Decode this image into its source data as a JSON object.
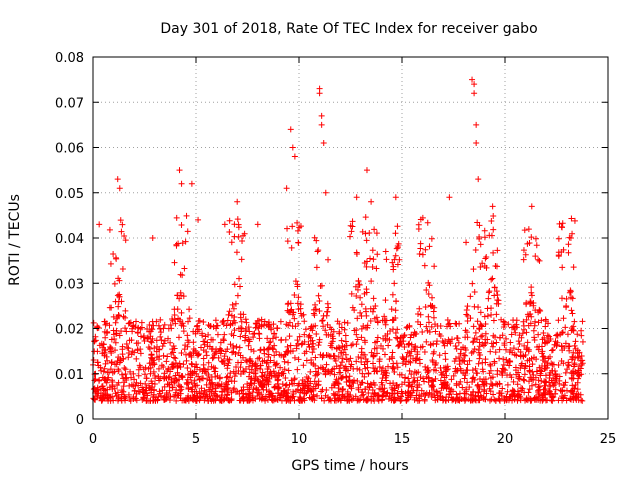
{
  "chart_data": {
    "type": "scatter",
    "title": "Day 301 of 2018, Rate Of TEC Index for receiver gabo",
    "xlabel": "GPS time / hours",
    "ylabel": "ROTI / TECUs",
    "xlim": [
      0,
      25
    ],
    "ylim": [
      0,
      0.08
    ],
    "xticks": [
      "0",
      "5",
      "10",
      "15",
      "20",
      "25"
    ],
    "yticks": [
      "0",
      "0.01",
      "0.02",
      "0.03",
      "0.04",
      "0.05",
      "0.06",
      "0.07",
      "0.08"
    ],
    "grid": true,
    "marker": "+",
    "marker_color": "#ff0000",
    "series": [
      {
        "notable_points": [
          {
            "x": 0.3,
            "y": 0.043
          },
          {
            "x": 1.2,
            "y": 0.053
          },
          {
            "x": 1.3,
            "y": 0.051
          },
          {
            "x": 2.9,
            "y": 0.04
          },
          {
            "x": 4.2,
            "y": 0.055
          },
          {
            "x": 4.3,
            "y": 0.052
          },
          {
            "x": 4.8,
            "y": 0.052
          },
          {
            "x": 5.1,
            "y": 0.044
          },
          {
            "x": 6.4,
            "y": 0.043
          },
          {
            "x": 7.0,
            "y": 0.048
          },
          {
            "x": 8.0,
            "y": 0.043
          },
          {
            "x": 9.4,
            "y": 0.051
          },
          {
            "x": 9.6,
            "y": 0.064
          },
          {
            "x": 9.7,
            "y": 0.06
          },
          {
            "x": 9.8,
            "y": 0.058
          },
          {
            "x": 11.0,
            "y": 0.073
          },
          {
            "x": 11.0,
            "y": 0.072
          },
          {
            "x": 11.1,
            "y": 0.067
          },
          {
            "x": 11.1,
            "y": 0.065
          },
          {
            "x": 11.2,
            "y": 0.061
          },
          {
            "x": 11.3,
            "y": 0.05
          },
          {
            "x": 12.8,
            "y": 0.049
          },
          {
            "x": 13.3,
            "y": 0.055
          },
          {
            "x": 13.5,
            "y": 0.048
          },
          {
            "x": 14.7,
            "y": 0.049
          },
          {
            "x": 17.3,
            "y": 0.049
          },
          {
            "x": 18.4,
            "y": 0.075
          },
          {
            "x": 18.5,
            "y": 0.074
          },
          {
            "x": 18.5,
            "y": 0.072
          },
          {
            "x": 18.6,
            "y": 0.065
          },
          {
            "x": 18.6,
            "y": 0.061
          },
          {
            "x": 18.7,
            "y": 0.053
          },
          {
            "x": 19.4,
            "y": 0.047
          },
          {
            "x": 21.3,
            "y": 0.047
          },
          {
            "x": 23.2,
            "y": 0.04
          }
        ]
      }
    ],
    "bulk_band": {
      "typical_low": 0.004,
      "typical_high": 0.022,
      "burst_high": 0.033
    }
  }
}
